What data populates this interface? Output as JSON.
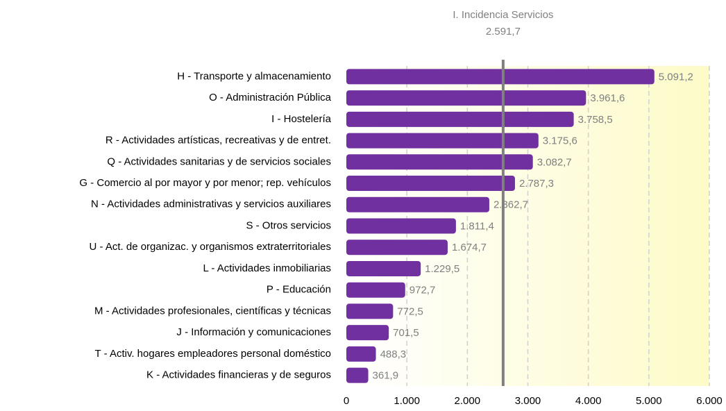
{
  "chart_data": {
    "type": "hbar",
    "categories": [
      "H - Transporte y almacenamiento",
      "O - Administración Pública",
      "I - Hostelería",
      "R - Actividades artísticas, recreativas y de entret.",
      "Q - Actividades sanitarias y de servicios sociales",
      "G - Comercio al por mayor y por menor; rep. vehículos",
      "N - Actividades administrativas y servicios auxiliares",
      "S - Otros servicios",
      "U - Act. de organizac. y organismos extraterritoriales",
      "L - Actividades inmobiliarias",
      "P - Educación",
      "M - Actividades profesionales, científicas y técnicas",
      "J - Información y comunicaciones",
      "T - Activ. hogares empleadores personal doméstico",
      "K - Actividades financieras y de seguros"
    ],
    "values": [
      5091.2,
      3961.6,
      3758.5,
      3175.6,
      3082.7,
      2787.3,
      2362.7,
      1811.4,
      1674.7,
      1229.5,
      972.7,
      772.5,
      701.5,
      488.3,
      361.9
    ],
    "value_labels": [
      "5.091,2",
      "3.961,6",
      "3.758,5",
      "3.175,6",
      "3.082,7",
      "2.787,3",
      "2.362,7",
      "1.811,4",
      "1.674,7",
      "1.229,5",
      "972,7",
      "772,5",
      "701,5",
      "488,3",
      "361,9"
    ],
    "color": "#7030a0",
    "xlim": [
      0,
      6000
    ],
    "xticks": [
      0,
      {
        "value": 1000,
        "label": "1.000"
      },
      {
        "value": 2000,
        "label": "2.000"
      },
      {
        "value": 3000,
        "label": "3.000"
      },
      {
        "value": 4000,
        "label": "4.000"
      },
      {
        "value": 5000,
        "label": "5.000"
      },
      {
        "value": 6000,
        "label": "6.000"
      }
    ],
    "grid": true,
    "reference": {
      "label": "I. Incidencia Servicios",
      "value": 2591.7,
      "value_label": "2.591,7",
      "color": "#808080"
    }
  }
}
